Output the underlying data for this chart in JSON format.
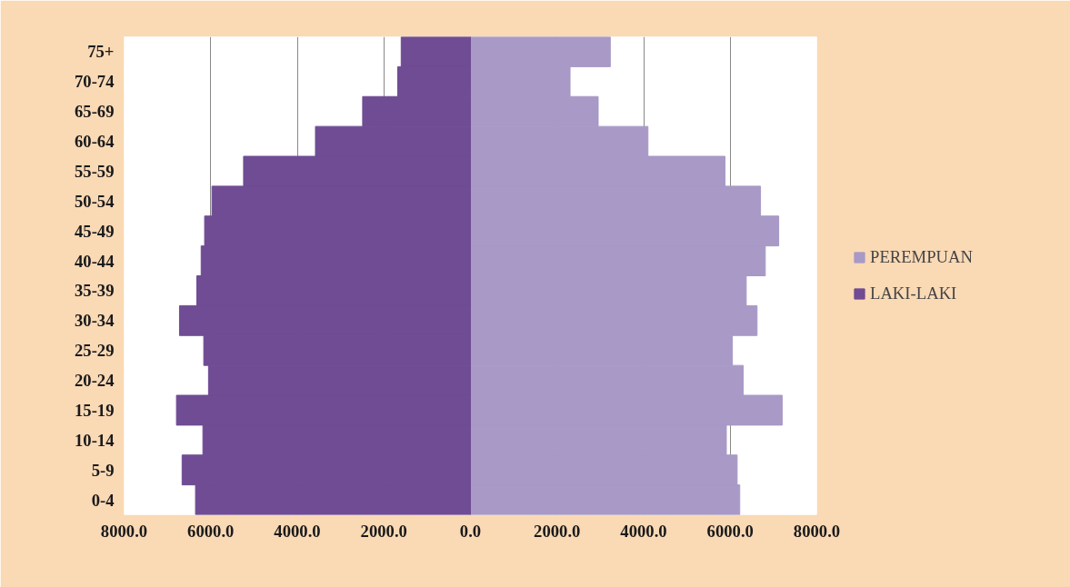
{
  "chart_data": {
    "type": "bar",
    "orientation": "horizontal",
    "stacked": true,
    "categories": [
      "75+",
      "70-74",
      "65-69",
      "60-64",
      "55-59",
      "50-54",
      "45-49",
      "40-44",
      "35-39",
      "30-34",
      "25-29",
      "20-24",
      "15-19",
      "10-14",
      "5-9",
      "0-4"
    ],
    "series": [
      {
        "name": "PEREMPUAN",
        "color": "#a899c6",
        "values": [
          3230,
          2300,
          2950,
          4100,
          5880,
          6700,
          7120,
          6810,
          6370,
          6620,
          6050,
          6300,
          7200,
          5910,
          6160,
          6220
        ]
      },
      {
        "name": "LAKI-LAKI",
        "color": "#6f4c93",
        "values": [
          -1600,
          -1680,
          -2490,
          -3580,
          -5240,
          -5970,
          -6140,
          -6220,
          -6320,
          -6720,
          -6160,
          -6050,
          -6790,
          -6180,
          -6660,
          -6350
        ]
      }
    ],
    "xlim": [
      -8000,
      8000
    ],
    "xticks": [
      {
        "value": -8000,
        "label": "8000.0"
      },
      {
        "value": -6000,
        "label": "6000.0"
      },
      {
        "value": -4000,
        "label": "4000.0"
      },
      {
        "value": -2000,
        "label": "2000.0"
      },
      {
        "value": 0,
        "label": "0.0"
      },
      {
        "value": 2000,
        "label": "2000.0"
      },
      {
        "value": 4000,
        "label": "4000.0"
      },
      {
        "value": 6000,
        "label": "6000.0"
      },
      {
        "value": 8000,
        "label": "8000.0"
      }
    ],
    "grid": "x",
    "legend": "right"
  }
}
